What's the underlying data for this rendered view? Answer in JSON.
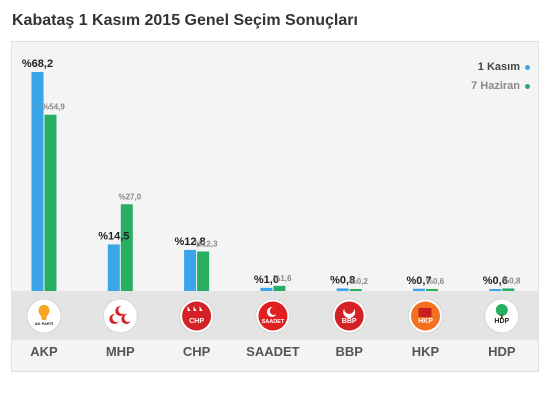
{
  "title": "Kabataş 1 Kasım 2015 Genel Seçim Sonuçları",
  "colors": {
    "current": "#3ba5ea",
    "previous": "#27ae60",
    "logo_strip": "#e4e4e4",
    "panel": "#f4f4f4"
  },
  "legend": [
    {
      "label": "1 Kasım",
      "color": "#3ba5ea"
    },
    {
      "label": "7 Haziran",
      "color": "#27ae60"
    }
  ],
  "chart_data": {
    "type": "bar",
    "categories": [
      "AKP",
      "MHP",
      "CHP",
      "SAADET",
      "BBP",
      "HKP",
      "HDP"
    ],
    "series": [
      {
        "name": "1 Kasım",
        "values": [
          68.2,
          14.5,
          12.8,
          1.0,
          0.8,
          0.7,
          0.6
        ],
        "labels": [
          "%68,2",
          "%14,5",
          "%12,8",
          "%1,0",
          "%0,8",
          "%0,7",
          "%0,6"
        ]
      },
      {
        "name": "7 Haziran",
        "values": [
          54.9,
          27.0,
          12.3,
          1.6,
          0.2,
          0.6,
          0.8
        ],
        "labels": [
          "%54,9",
          "%27,0",
          "%12,3",
          "%1,6",
          "%0,2",
          "%0,6",
          "%0,8"
        ]
      }
    ],
    "ylim": [
      0,
      70
    ],
    "grid": false,
    "legend_position": "top-right"
  },
  "parties": [
    {
      "name": "AKP",
      "logo_color": "#f5a623",
      "logo_text": "AK PARTİ",
      "logo_bg": "#ffffff",
      "icon": "lightbulb-icon"
    },
    {
      "name": "MHP",
      "logo_color": "#d42027",
      "logo_text": "",
      "logo_bg": "#ffffff",
      "icon": "crescents-icon"
    },
    {
      "name": "CHP",
      "logo_color": "#d42027",
      "logo_text": "CHP",
      "logo_bg": "#d42027",
      "icon": "arrows-icon"
    },
    {
      "name": "SAADET",
      "logo_color": "#e02020",
      "logo_text": "SAADET",
      "logo_bg": "#e02020",
      "icon": "star-icon"
    },
    {
      "name": "BBP",
      "logo_color": "#d42027",
      "logo_text": "BBP",
      "logo_bg": "#d42027",
      "icon": "crescent-icon"
    },
    {
      "name": "HKP",
      "logo_color": "#e8531f",
      "logo_text": "HKP",
      "logo_bg": "#f37021",
      "icon": "flag-icon"
    },
    {
      "name": "HDP",
      "logo_color": "#27ae60",
      "logo_text": "HDP",
      "logo_bg": "#ffffff",
      "icon": "tree-icon"
    }
  ]
}
